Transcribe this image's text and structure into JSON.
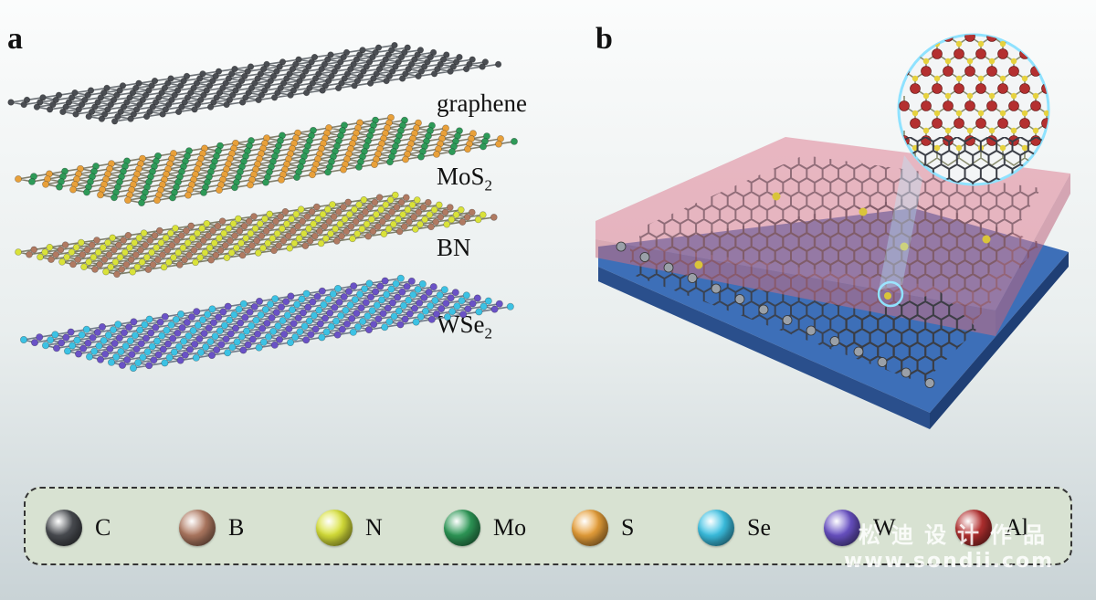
{
  "panels": {
    "a": "a",
    "b": "b"
  },
  "layers": [
    {
      "label": "graphene",
      "sub": ""
    },
    {
      "label": "MoS",
      "sub": "2"
    },
    {
      "label": "BN",
      "sub": ""
    },
    {
      "label": "WSe",
      "sub": "2"
    }
  ],
  "legend": [
    {
      "symbol": "C",
      "color": "#4a4d52"
    },
    {
      "symbol": "B",
      "color": "#b07a62"
    },
    {
      "symbol": "N",
      "color": "#d9e23a"
    },
    {
      "symbol": "Mo",
      "color": "#2e9a58"
    },
    {
      "symbol": "S",
      "color": "#e8a03a"
    },
    {
      "symbol": "Se",
      "color": "#3cc2e4"
    },
    {
      "symbol": "W",
      "color": "#6a52c6"
    },
    {
      "symbol": "Al",
      "color": "#b43030"
    }
  ],
  "watermark": {
    "chinese": "松迪设计作品",
    "url": "www.sondii.com"
  }
}
